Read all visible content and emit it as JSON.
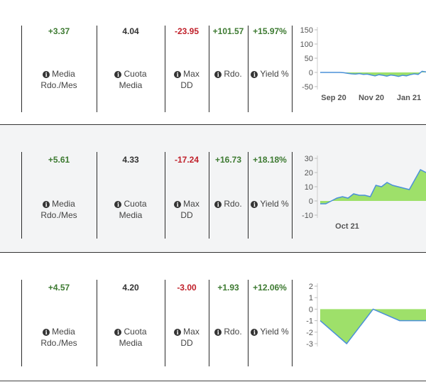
{
  "info_icon": "info-circle-icon",
  "colors": {
    "positive": "#3d7a31",
    "negative": "#c0202a",
    "area_fill": "#9ee06a",
    "line": "#4a90d9"
  },
  "rows": [
    {
      "media_value": "+3.37",
      "cuota_value": "4.04",
      "maxdd_value": "-23.95",
      "rdo_value": "+101.57",
      "yield_value": "+15.97%",
      "labels": {
        "media_1": "Media",
        "media_2": "Rdo./Mes",
        "cuota_1": "Cuota",
        "cuota_2": "Media",
        "maxdd_1": "Max",
        "maxdd_2": "DD",
        "rdo": "Rdo.",
        "yield": "Yield %"
      },
      "chart_data": {
        "type": "area",
        "y_ticks": [
          "150",
          "100",
          "50",
          "0",
          "-50"
        ],
        "x_ticks": [
          "Sep 20",
          "Nov 20",
          "Jan 21"
        ],
        "ylim": [
          -50,
          150
        ],
        "values": [
          0,
          0,
          0,
          0,
          0,
          0,
          -1,
          -3,
          -5,
          -6,
          -4,
          -7,
          -6,
          -9,
          -12,
          -8,
          -10,
          -13,
          -9,
          -11,
          -14,
          -10,
          -12,
          -8,
          -5,
          -7,
          4,
          2
        ]
      }
    },
    {
      "media_value": "+5.61",
      "cuota_value": "4.33",
      "maxdd_value": "-17.24",
      "rdo_value": "+16.73",
      "yield_value": "+18.18%",
      "labels": {
        "media_1": "Media",
        "media_2": "Rdo./Mes",
        "cuota_1": "Cuota",
        "cuota_2": "Media",
        "maxdd_1": "Max",
        "maxdd_2": "DD",
        "rdo": "Rdo.",
        "yield": "Yield %"
      },
      "chart_data": {
        "type": "area",
        "y_ticks": [
          "30",
          "20",
          "10",
          "0",
          "-10"
        ],
        "x_ticks": [
          "Oct 21"
        ],
        "ylim": [
          -10,
          30
        ],
        "values": [
          -2,
          -2,
          0,
          2,
          3,
          2,
          5,
          4,
          4,
          3,
          11,
          10,
          13,
          11,
          10,
          9,
          8,
          15,
          22,
          20
        ]
      }
    },
    {
      "media_value": "+4.57",
      "cuota_value": "4.20",
      "maxdd_value": "-3.00",
      "rdo_value": "+1.93",
      "yield_value": "+12.06%",
      "labels": {
        "media_1": "Media",
        "media_2": "Rdo./Mes",
        "cuota_1": "Cuota",
        "cuota_2": "Media",
        "maxdd_1": "Max",
        "maxdd_2": "DD",
        "rdo": "Rdo.",
        "yield": "Yield %"
      },
      "chart_data": {
        "type": "area",
        "y_ticks": [
          "2",
          "1",
          "0",
          "-1",
          "-2",
          "-3"
        ],
        "x_ticks": [],
        "ylim": [
          -3,
          2
        ],
        "values": [
          -1,
          -3,
          0,
          -1,
          -1
        ]
      }
    }
  ]
}
